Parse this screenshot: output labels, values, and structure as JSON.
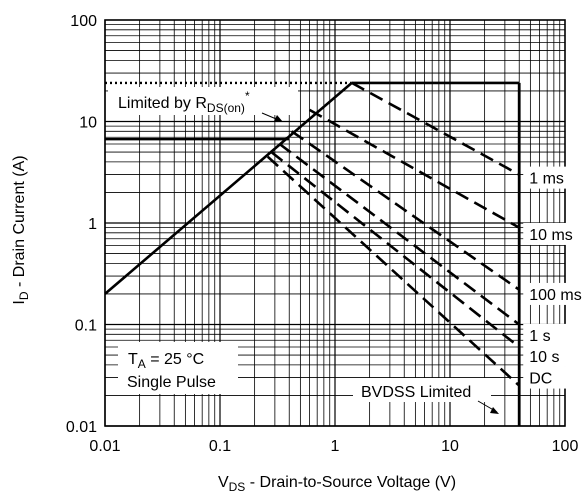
{
  "chart_data": {
    "type": "line",
    "title": "",
    "scale": "log-log",
    "grid": true,
    "xlim": [
      0.01,
      100
    ],
    "ylim": [
      0.01,
      100
    ],
    "xlabel": {
      "main": "V",
      "sub": "DS",
      "rest": " - Drain-to-Source Voltage (V)"
    },
    "ylabel": {
      "main": "I",
      "sub": "D",
      "rest": " - Drain Current (A)"
    },
    "x_ticks": [
      {
        "v": 0.01,
        "label": "0.01"
      },
      {
        "v": 0.1,
        "label": "0.1"
      },
      {
        "v": 1,
        "label": "1"
      },
      {
        "v": 10,
        "label": "10"
      },
      {
        "v": 100,
        "label": "100"
      }
    ],
    "y_ticks": [
      {
        "v": 0.01,
        "label": "0.01"
      },
      {
        "v": 0.1,
        "label": "0.1"
      },
      {
        "v": 1,
        "label": "1"
      },
      {
        "v": 10,
        "label": "10"
      },
      {
        "v": 100,
        "label": "100"
      }
    ],
    "rdson_limit": {
      "points": [
        [
          0.01,
          0.2
        ],
        [
          1.4,
          24
        ]
      ]
    },
    "id_max_limit": {
      "points": [
        [
          1.4,
          24
        ],
        [
          40,
          24
        ]
      ],
      "extension_points": [
        [
          0.01,
          24
        ],
        [
          1.4,
          24
        ]
      ]
    },
    "bvdss_limit": {
      "points": [
        [
          40,
          24
        ],
        [
          40,
          0.01
        ]
      ]
    },
    "continuous_limit": {
      "points": [
        [
          0.01,
          6.7
        ],
        [
          0.4,
          6.7
        ]
      ]
    },
    "series": [
      {
        "name": "1 ms",
        "points": [
          [
            1.4,
            24
          ],
          [
            40,
            3
          ]
        ]
      },
      {
        "name": "10 ms",
        "points": [
          [
            0.6,
            13
          ],
          [
            40,
            0.9
          ]
        ]
      },
      {
        "name": "100 ms",
        "points": [
          [
            0.42,
            8
          ],
          [
            40,
            0.22
          ]
        ]
      },
      {
        "name": "1 s",
        "points": [
          [
            0.33,
            6
          ],
          [
            40,
            0.1
          ]
        ]
      },
      {
        "name": "10 s",
        "points": [
          [
            0.28,
            5
          ],
          [
            40,
            0.06
          ]
        ]
      },
      {
        "name": "DC",
        "points": [
          [
            0.26,
            4.5
          ],
          [
            40,
            0.025
          ]
        ]
      }
    ],
    "series_labels": [
      {
        "name": "1 ms",
        "v": 2.8
      },
      {
        "name": "10 ms",
        "v": 0.78
      },
      {
        "name": "100 ms",
        "v": 0.2
      },
      {
        "name": "1 s",
        "v": 0.079
      },
      {
        "name": "10 s",
        "v": 0.049
      },
      {
        "name": "DC",
        "v": 0.03
      }
    ],
    "annotations": {
      "rdson": {
        "text": "Limited by R",
        "sub": "DS(on)",
        "sup": "*"
      },
      "conditions": [
        {
          "main": "T",
          "sub": "A",
          "rest": " = 25 °C"
        },
        {
          "main": "Single Pulse",
          "sub": "",
          "rest": ""
        }
      ],
      "bvdss": "BVDSS Limited"
    },
    "colors": {
      "line": "#000000",
      "grid": "#000000",
      "background": "#ffffff"
    }
  }
}
